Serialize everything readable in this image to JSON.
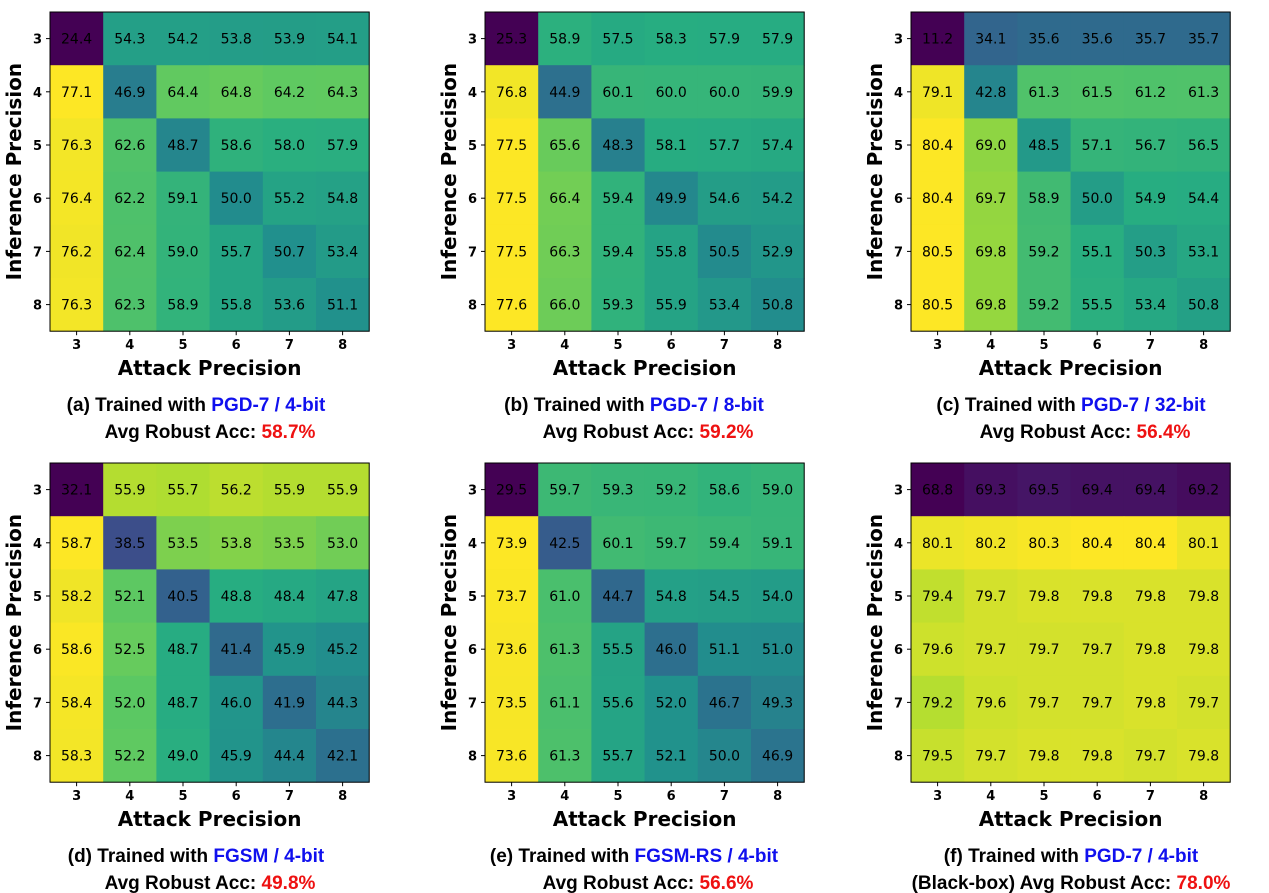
{
  "chart_data": [
    {
      "type": "heatmap",
      "label": "(a)",
      "caption_prefix": "Trained with",
      "caption_method": "PGD-7 / 4-bit",
      "acc_prefix": "Avg Robust Acc:",
      "acc_value": "58.7%",
      "xlabel": "Attack Precision",
      "ylabel": "Inference Precision",
      "x_ticks": [
        "3",
        "4",
        "5",
        "6",
        "7",
        "8"
      ],
      "y_ticks": [
        "3",
        "4",
        "5",
        "6",
        "7",
        "8"
      ],
      "values": [
        [
          24.4,
          54.3,
          54.2,
          53.8,
          53.9,
          54.1
        ],
        [
          77.1,
          46.9,
          64.4,
          64.8,
          64.2,
          64.3
        ],
        [
          76.3,
          62.6,
          48.7,
          58.6,
          58.0,
          57.9
        ],
        [
          76.4,
          62.2,
          59.1,
          50.0,
          55.2,
          54.8
        ],
        [
          76.2,
          62.4,
          59.0,
          55.7,
          50.7,
          53.4
        ],
        [
          76.3,
          62.3,
          58.9,
          55.8,
          53.6,
          51.1
        ]
      ]
    },
    {
      "type": "heatmap",
      "label": "(b)",
      "caption_prefix": "Trained with",
      "caption_method": "PGD-7 / 8-bit",
      "acc_prefix": "Avg Robust Acc:",
      "acc_value": "59.2%",
      "xlabel": "Attack Precision",
      "ylabel": "Inference Precision",
      "x_ticks": [
        "3",
        "4",
        "5",
        "6",
        "7",
        "8"
      ],
      "y_ticks": [
        "3",
        "4",
        "5",
        "6",
        "7",
        "8"
      ],
      "values": [
        [
          25.3,
          58.9,
          57.5,
          58.3,
          57.9,
          57.9
        ],
        [
          76.8,
          44.9,
          60.1,
          60.0,
          60.0,
          59.9
        ],
        [
          77.5,
          65.6,
          48.3,
          58.1,
          57.7,
          57.4
        ],
        [
          77.5,
          66.4,
          59.4,
          49.9,
          54.6,
          54.2
        ],
        [
          77.5,
          66.3,
          59.4,
          55.8,
          50.5,
          52.9
        ],
        [
          77.6,
          66.0,
          59.3,
          55.9,
          53.4,
          50.8
        ]
      ]
    },
    {
      "type": "heatmap",
      "label": "(c)",
      "caption_prefix": "Trained with",
      "caption_method": "PGD-7 / 32-bit",
      "acc_prefix": "Avg Robust Acc:",
      "acc_value": "56.4%",
      "xlabel": "Attack Precision",
      "ylabel": "Inference Precision",
      "x_ticks": [
        "3",
        "4",
        "5",
        "6",
        "7",
        "8"
      ],
      "y_ticks": [
        "3",
        "4",
        "5",
        "6",
        "7",
        "8"
      ],
      "values": [
        [
          11.2,
          34.1,
          35.6,
          35.6,
          35.7,
          35.7
        ],
        [
          79.1,
          42.8,
          61.3,
          61.5,
          61.2,
          61.3
        ],
        [
          80.4,
          69.0,
          48.5,
          57.1,
          56.7,
          56.5
        ],
        [
          80.4,
          69.7,
          58.9,
          50.0,
          54.9,
          54.4
        ],
        [
          80.5,
          69.8,
          59.2,
          55.1,
          50.3,
          53.1
        ],
        [
          80.5,
          69.8,
          59.2,
          55.5,
          53.4,
          50.8
        ]
      ]
    },
    {
      "type": "heatmap",
      "label": "(d)",
      "caption_prefix": "Trained with",
      "caption_method": "FGSM / 4-bit",
      "acc_prefix": "Avg Robust Acc:",
      "acc_value": "49.8%",
      "xlabel": "Attack Precision",
      "ylabel": "Inference Precision",
      "x_ticks": [
        "3",
        "4",
        "5",
        "6",
        "7",
        "8"
      ],
      "y_ticks": [
        "3",
        "4",
        "5",
        "6",
        "7",
        "8"
      ],
      "values": [
        [
          32.1,
          55.9,
          55.7,
          56.2,
          55.9,
          55.9
        ],
        [
          58.7,
          38.5,
          53.5,
          53.8,
          53.5,
          53.0
        ],
        [
          58.2,
          52.1,
          40.5,
          48.8,
          48.4,
          47.8
        ],
        [
          58.6,
          52.5,
          48.7,
          41.4,
          45.9,
          45.2
        ],
        [
          58.4,
          52.0,
          48.7,
          46.0,
          41.9,
          44.3
        ],
        [
          58.3,
          52.2,
          49.0,
          45.9,
          44.4,
          42.1
        ]
      ]
    },
    {
      "type": "heatmap",
      "label": "(e)",
      "caption_prefix": "Trained with",
      "caption_method": "FGSM-RS / 4-bit",
      "acc_prefix": "Avg Robust Acc:",
      "acc_value": "56.6%",
      "xlabel": "Attack Precision",
      "ylabel": "Inference Precision",
      "x_ticks": [
        "3",
        "4",
        "5",
        "6",
        "7",
        "8"
      ],
      "y_ticks": [
        "3",
        "4",
        "5",
        "6",
        "7",
        "8"
      ],
      "values": [
        [
          29.5,
          59.7,
          59.3,
          59.2,
          58.6,
          59.0
        ],
        [
          73.9,
          42.5,
          60.1,
          59.7,
          59.4,
          59.1
        ],
        [
          73.7,
          61.0,
          44.7,
          54.8,
          54.5,
          54.0
        ],
        [
          73.6,
          61.3,
          55.5,
          46.0,
          51.1,
          51.0
        ],
        [
          73.5,
          61.1,
          55.6,
          52.0,
          46.7,
          49.3
        ],
        [
          73.6,
          61.3,
          55.7,
          52.1,
          50.0,
          46.9
        ]
      ]
    },
    {
      "type": "heatmap",
      "label": "(f)",
      "caption_prefix": "Trained with",
      "caption_method": "PGD-7 / 4-bit",
      "acc_prefix": "(Black-box) Avg Robust Acc:",
      "acc_value": "78.0%",
      "xlabel": "Attack Precision",
      "ylabel": "Inference Precision",
      "x_ticks": [
        "3",
        "4",
        "5",
        "6",
        "7",
        "8"
      ],
      "y_ticks": [
        "3",
        "4",
        "5",
        "6",
        "7",
        "8"
      ],
      "values": [
        [
          68.8,
          69.3,
          69.5,
          69.4,
          69.4,
          69.2
        ],
        [
          80.1,
          80.2,
          80.3,
          80.4,
          80.4,
          80.1
        ],
        [
          79.4,
          79.7,
          79.8,
          79.8,
          79.8,
          79.8
        ],
        [
          79.6,
          79.7,
          79.7,
          79.7,
          79.8,
          79.8
        ],
        [
          79.2,
          79.6,
          79.7,
          79.7,
          79.8,
          79.7
        ],
        [
          79.5,
          79.7,
          79.8,
          79.8,
          79.7,
          79.8
        ]
      ]
    }
  ]
}
